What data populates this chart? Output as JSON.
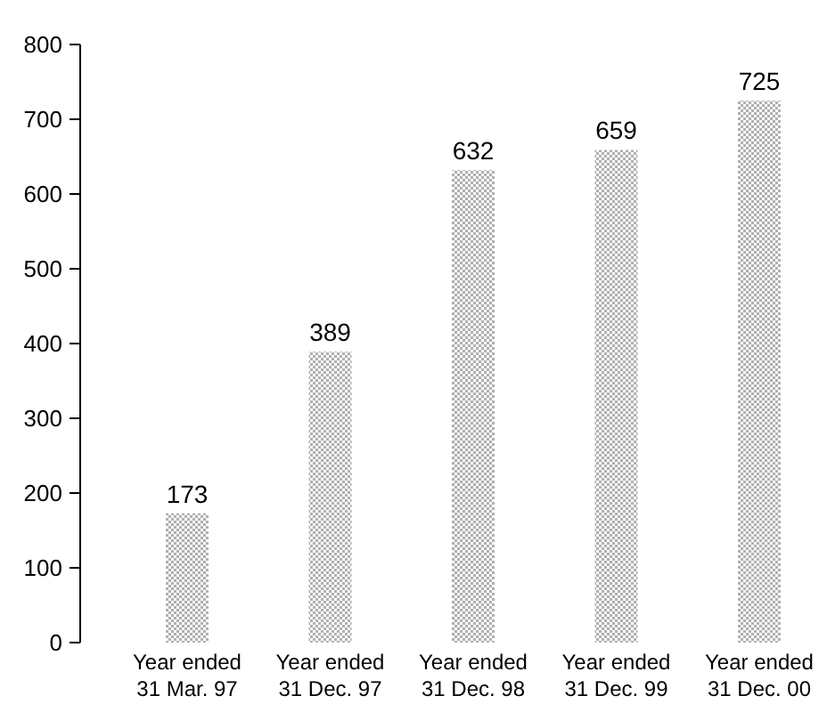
{
  "chart_data": {
    "type": "bar",
    "categories": [
      "Year ended 31 Mar. 97",
      "Year ended 31 Dec. 97",
      "Year ended 31 Dec. 98",
      "Year ended 31 Dec. 99",
      "Year ended 31 Dec. 00"
    ],
    "values": [
      173,
      389,
      632,
      659,
      725
    ],
    "color": "#b0b0b0",
    "data_labels": true,
    "ylim": [
      0,
      800
    ],
    "yticks": [
      0,
      100,
      200,
      300,
      400,
      500,
      600,
      700,
      800
    ],
    "grid": false
  }
}
